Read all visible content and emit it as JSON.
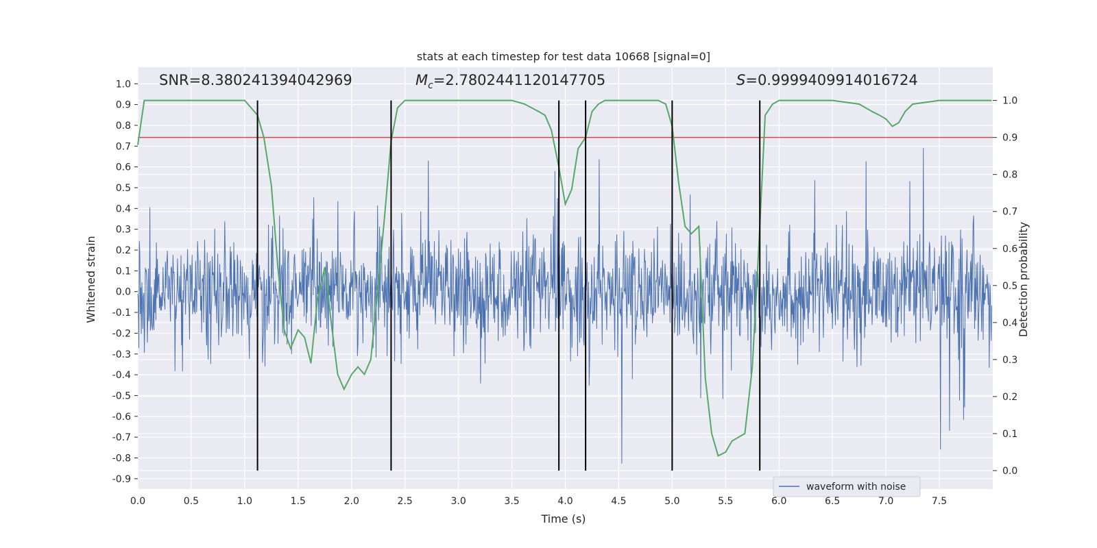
{
  "chart_data": {
    "type": "line",
    "title": "stats at each timestep for test data 10668 [signal=0]",
    "xlabel": "Time (s)",
    "ylabel_left": "Whitened strain",
    "ylabel_right": "Detection probability",
    "xlim": [
      0.0,
      8.0
    ],
    "ylim_left": [
      -0.95,
      1.08
    ],
    "ylim_right": [
      -0.05,
      1.09
    ],
    "x_ticks": [
      "0.0",
      "0.5",
      "1.0",
      "1.5",
      "2.0",
      "2.5",
      "3.0",
      "3.5",
      "4.0",
      "4.5",
      "5.0",
      "5.5",
      "6.0",
      "6.5",
      "7.0",
      "7.5"
    ],
    "y_left_ticks": [
      "-0.9",
      "-0.8",
      "-0.7",
      "-0.6",
      "-0.5",
      "-0.4",
      "-0.3",
      "-0.2",
      "-0.1",
      "0.0",
      "0.1",
      "0.2",
      "0.3",
      "0.4",
      "0.5",
      "0.6",
      "0.7",
      "0.8",
      "0.9",
      "1.0"
    ],
    "y_right_ticks": [
      "0.0",
      "0.1",
      "0.2",
      "0.3",
      "0.4",
      "0.5",
      "0.6",
      "0.7",
      "0.8",
      "0.9",
      "1.0"
    ],
    "annotations": {
      "snr_label": "SNR=8.380241394042969",
      "mc_symbol": "M",
      "mc_sub": "c",
      "mc_value": "=2.7802441120147705",
      "s_symbol": "S",
      "s_value": "=0.9999409914016724"
    },
    "threshold": 0.9,
    "vertical_lines_x": [
      1.12,
      2.37,
      3.94,
      4.19,
      5.0,
      5.82
    ],
    "legend": {
      "label": "waveform with noise",
      "position": "lower-right"
    },
    "series": [
      {
        "name": "waveform with noise",
        "color": "#4c72b0",
        "axis": "left",
        "noise_sigma": 0.13,
        "n_points": 1700
      },
      {
        "name": "Detection probability",
        "color": "#55a868",
        "axis": "right",
        "x": [
          0.0,
          0.06,
          0.12,
          0.5,
          1.0,
          1.06,
          1.12,
          1.18,
          1.25,
          1.31,
          1.37,
          1.43,
          1.5,
          1.56,
          1.62,
          1.68,
          1.75,
          1.81,
          1.87,
          1.93,
          2.0,
          2.06,
          2.12,
          2.18,
          2.25,
          2.31,
          2.37,
          2.43,
          2.5,
          2.56,
          2.62,
          3.0,
          3.5,
          3.62,
          3.75,
          3.81,
          3.87,
          3.94,
          4.0,
          4.06,
          4.12,
          4.19,
          4.25,
          4.31,
          4.37,
          4.5,
          4.87,
          4.94,
          5.0,
          5.06,
          5.12,
          5.18,
          5.25,
          5.31,
          5.37,
          5.43,
          5.5,
          5.56,
          5.62,
          5.68,
          5.75,
          5.81,
          5.87,
          5.94,
          6.0,
          6.5,
          6.75,
          6.87,
          6.94,
          7.0,
          7.06,
          7.12,
          7.18,
          7.25,
          7.5,
          7.75,
          7.99
        ],
        "values": [
          0.88,
          1.0,
          1.0,
          1.0,
          1.0,
          0.98,
          0.96,
          0.9,
          0.77,
          0.55,
          0.38,
          0.33,
          0.38,
          0.36,
          0.29,
          0.46,
          0.55,
          0.4,
          0.26,
          0.22,
          0.26,
          0.28,
          0.26,
          0.3,
          0.5,
          0.69,
          0.89,
          0.98,
          1.0,
          1.0,
          1.0,
          1.0,
          1.0,
          0.99,
          0.97,
          0.96,
          0.92,
          0.82,
          0.72,
          0.76,
          0.87,
          0.9,
          0.97,
          0.99,
          1.0,
          1.0,
          1.0,
          0.99,
          0.93,
          0.78,
          0.66,
          0.64,
          0.66,
          0.25,
          0.1,
          0.04,
          0.05,
          0.08,
          0.09,
          0.1,
          0.28,
          0.6,
          0.96,
          0.99,
          1.0,
          1.0,
          0.99,
          0.97,
          0.96,
          0.95,
          0.93,
          0.94,
          0.97,
          0.99,
          1.0,
          1.0,
          1.0
        ]
      }
    ]
  },
  "colors": {
    "plot_bg": "#eaeaf2",
    "grid": "#ffffff",
    "waveform": "#4c72b0",
    "probability": "#55a868",
    "threshold": "#c44e52",
    "vlines": "#000000"
  }
}
